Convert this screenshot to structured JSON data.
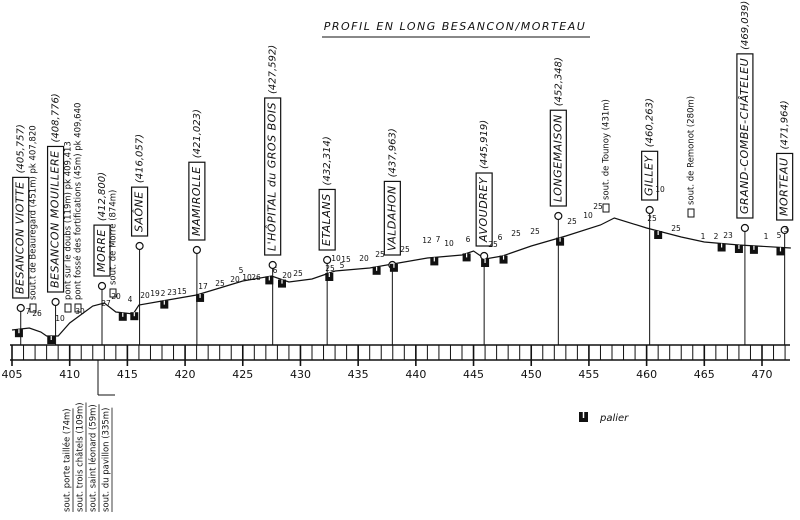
{
  "title": "PROFIL EN LONG  BESANCON/MORTEAU",
  "stations": [
    {
      "name": "BESANCON VIOTTE",
      "pk": "(405,757)"
    },
    {
      "name": "BESANCON MOUILLERE",
      "pk": "(408,776)"
    },
    {
      "name": "MORRE",
      "pk": "(412,800)"
    },
    {
      "name": "SAÔNE",
      "pk": "(416,057)"
    },
    {
      "name": "MAMIROLLE",
      "pk": "(421,023)"
    },
    {
      "name": "L'HÔPITAL du GROS BOIS",
      "pk": "(427,592)"
    },
    {
      "name": "ETALANS",
      "pk": "(432,314)"
    },
    {
      "name": "VALDAHON",
      "pk": "(437,963)"
    },
    {
      "name": "AVOUDREY",
      "pk": "(445,919)"
    },
    {
      "name": "LONGEMAISON",
      "pk": "(452,348)"
    },
    {
      "name": "GILLEY",
      "pk": "(460,263)"
    },
    {
      "name": "GRAND-COMBE-CHÂTELEU",
      "pk": "(469,039)"
    },
    {
      "name": "MORTEAU",
      "pk": "(471,964)"
    }
  ],
  "annotations_above": [
    "sout.t de Beauregard (451m) pk 407,820",
    "pont sur le doubs (119m) pk 409,413",
    "pont fossé des fortifications (45m) pk 409,640",
    "sout. de Morre (874m)",
    "sout. de Tounoy (431m)",
    "sout. de Remonot (280m)"
  ],
  "annotations_below": [
    "sout. porte taillée (74m)",
    "sout. trois châtels (109m)",
    "sout. saint léonard (59m)",
    "sout. du pavillon (335m)"
  ],
  "axis": {
    "ticks": [
      405,
      410,
      415,
      420,
      425,
      430,
      435,
      440,
      445,
      450,
      455,
      460,
      465,
      470
    ]
  },
  "gradients": [
    "7",
    "26",
    "10",
    "30",
    "27",
    "20",
    "4",
    "20",
    "19",
    "2",
    "23",
    "15",
    "17",
    "25",
    "20",
    "5",
    "10",
    "26",
    "6",
    "20",
    "25",
    "25",
    "5",
    "10",
    "15",
    "20",
    "25",
    "25",
    "12",
    "7",
    "10",
    "6",
    "6",
    "25",
    "25",
    "25",
    "25",
    "10",
    "25",
    "25",
    "10",
    "25",
    "1",
    "2",
    "23",
    "1",
    "5",
    "3"
  ],
  "legend": {
    "label": "palier"
  }
}
